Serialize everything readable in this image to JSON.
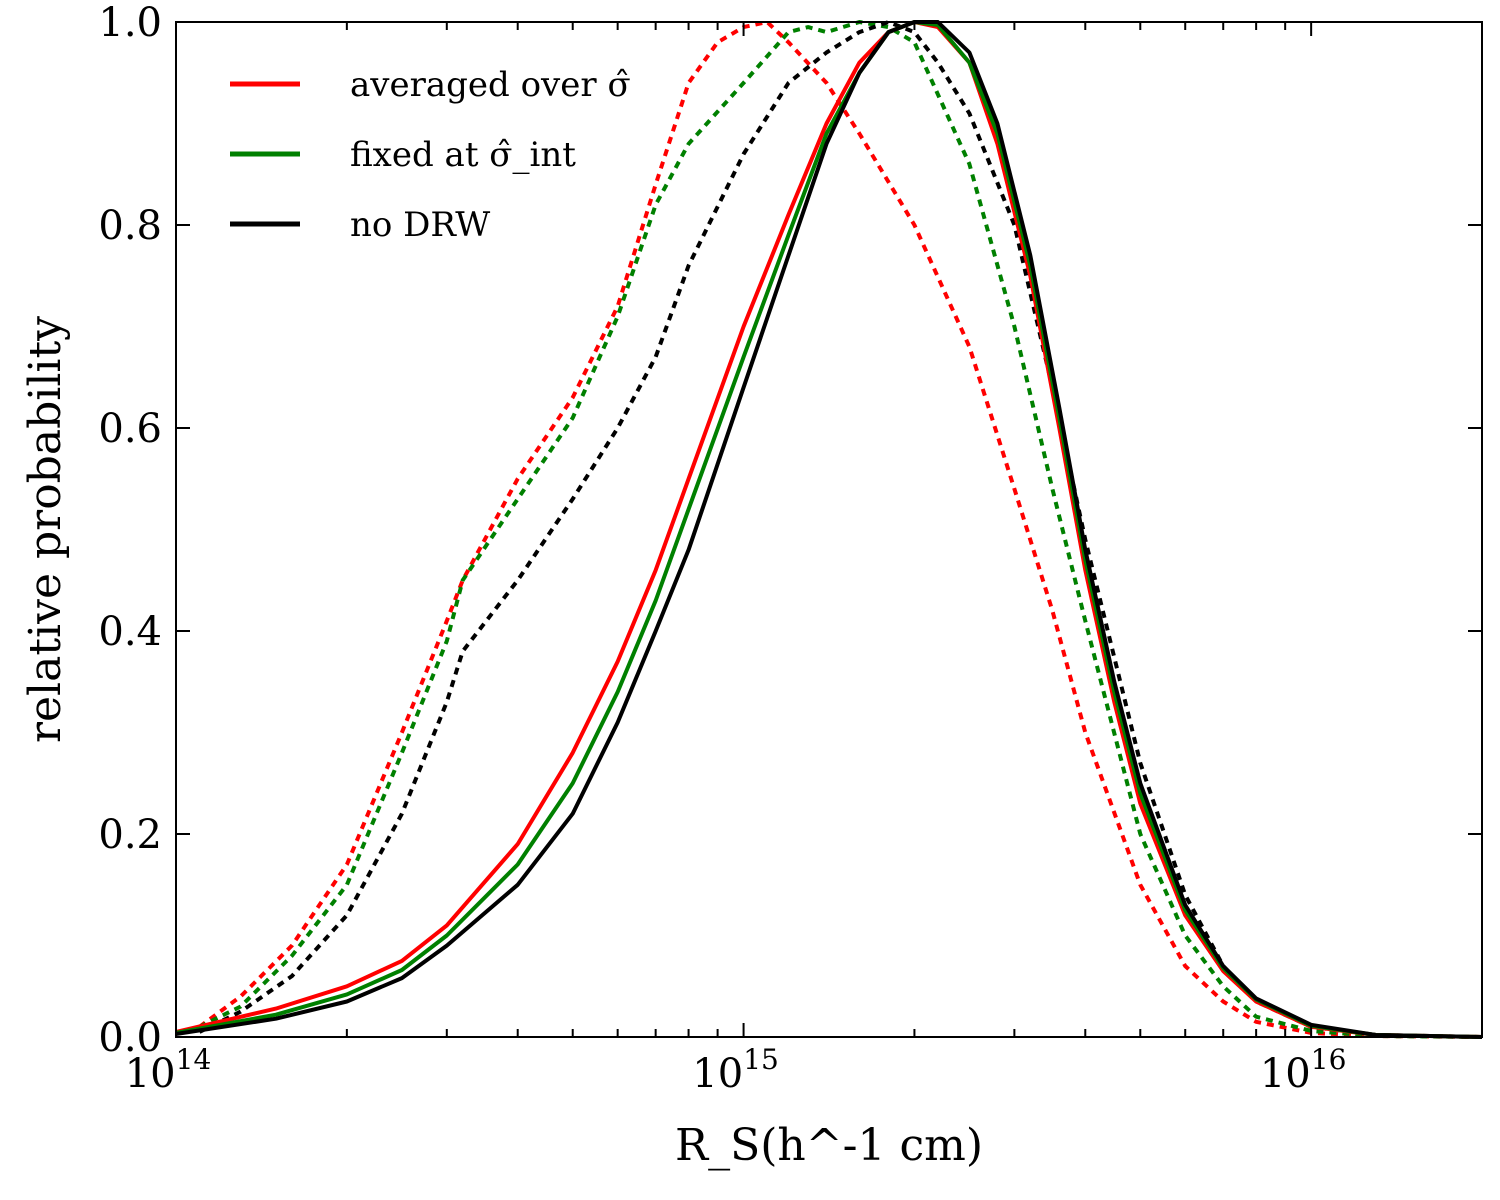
{
  "chart_data": {
    "type": "line",
    "title": "",
    "xlabel": "R_S(h^-1 cm)",
    "ylabel": "relative probability",
    "xscale": "log",
    "xlim": [
      100000000000000.0,
      2e+16
    ],
    "ylim": [
      0.0,
      1.0
    ],
    "legend_position": "top-left",
    "x_ticks": [
      {
        "value": 100000000000000.0,
        "base": "10",
        "exp": "14"
      },
      {
        "value": 1000000000000000.0,
        "base": "10",
        "exp": "15"
      },
      {
        "value": 1e+16,
        "base": "10",
        "exp": "16"
      }
    ],
    "y_ticks": [
      {
        "value": 0.0,
        "label": "0.0"
      },
      {
        "value": 0.2,
        "label": "0.2"
      },
      {
        "value": 0.4,
        "label": "0.4"
      },
      {
        "value": 0.6,
        "label": "0.6"
      },
      {
        "value": 0.8,
        "label": "0.8"
      },
      {
        "value": 1.0,
        "label": "1.0"
      }
    ],
    "legend": [
      {
        "label": "averaged over σ̂",
        "color": "#ff0000"
      },
      {
        "label": "fixed at σ̂_int",
        "color": "#008000"
      },
      {
        "label": "no DRW",
        "color": "#000000"
      }
    ],
    "series": [
      {
        "name": "averaged over σ̂ (solid)",
        "color": "#ff0000",
        "style": "solid",
        "x": [
          100000000000000.0,
          150000000000000.0,
          200000000000000.0,
          250000000000000.0,
          300000000000000.0,
          400000000000000.0,
          500000000000000.0,
          600000000000000.0,
          700000000000000.0,
          800000000000000.0,
          1000000000000000.0,
          1200000000000000.0,
          1400000000000000.0,
          1600000000000000.0,
          1800000000000000.0,
          2000000000000000.0,
          2200000000000000.0,
          2500000000000000.0,
          2800000000000000.0,
          3200000000000000.0,
          3600000000000000.0,
          4000000000000000.0,
          4500000000000000.0,
          5000000000000000.0,
          6000000000000000.0,
          7000000000000000.0,
          8000000000000000.0,
          1e+16,
          1.3e+16,
          2e+16
        ],
        "y": [
          0.005,
          0.028,
          0.05,
          0.075,
          0.11,
          0.19,
          0.28,
          0.37,
          0.46,
          0.55,
          0.7,
          0.81,
          0.9,
          0.96,
          0.99,
          1.0,
          0.995,
          0.96,
          0.88,
          0.75,
          0.6,
          0.46,
          0.33,
          0.23,
          0.12,
          0.065,
          0.035,
          0.01,
          0.002,
          0.0
        ]
      },
      {
        "name": "fixed at σ̂_int (solid)",
        "color": "#008000",
        "style": "solid",
        "x": [
          100000000000000.0,
          150000000000000.0,
          200000000000000.0,
          250000000000000.0,
          300000000000000.0,
          400000000000000.0,
          500000000000000.0,
          600000000000000.0,
          700000000000000.0,
          800000000000000.0,
          1000000000000000.0,
          1200000000000000.0,
          1400000000000000.0,
          1600000000000000.0,
          1800000000000000.0,
          2000000000000000.0,
          2200000000000000.0,
          2500000000000000.0,
          2800000000000000.0,
          3200000000000000.0,
          3600000000000000.0,
          4000000000000000.0,
          4500000000000000.0,
          5000000000000000.0,
          6000000000000000.0,
          7000000000000000.0,
          8000000000000000.0,
          1e+16,
          1.3e+16,
          2e+16
        ],
        "y": [
          0.004,
          0.022,
          0.042,
          0.066,
          0.1,
          0.17,
          0.25,
          0.34,
          0.43,
          0.52,
          0.67,
          0.79,
          0.89,
          0.95,
          0.99,
          1.0,
          0.997,
          0.96,
          0.89,
          0.76,
          0.61,
          0.47,
          0.34,
          0.24,
          0.125,
          0.068,
          0.037,
          0.011,
          0.002,
          0.0
        ]
      },
      {
        "name": "no DRW (solid)",
        "color": "#000000",
        "style": "solid",
        "x": [
          100000000000000.0,
          150000000000000.0,
          200000000000000.0,
          250000000000000.0,
          300000000000000.0,
          400000000000000.0,
          500000000000000.0,
          600000000000000.0,
          700000000000000.0,
          800000000000000.0,
          1000000000000000.0,
          1200000000000000.0,
          1400000000000000.0,
          1600000000000000.0,
          1800000000000000.0,
          2000000000000000.0,
          2200000000000000.0,
          2500000000000000.0,
          2800000000000000.0,
          3200000000000000.0,
          3600000000000000.0,
          4000000000000000.0,
          4500000000000000.0,
          5000000000000000.0,
          6000000000000000.0,
          7000000000000000.0,
          8000000000000000.0,
          1e+16,
          1.3e+16,
          2e+16
        ],
        "y": [
          0.003,
          0.018,
          0.035,
          0.058,
          0.09,
          0.15,
          0.22,
          0.31,
          0.4,
          0.48,
          0.64,
          0.77,
          0.88,
          0.95,
          0.99,
          1.0,
          1.0,
          0.97,
          0.9,
          0.77,
          0.62,
          0.48,
          0.35,
          0.25,
          0.13,
          0.07,
          0.038,
          0.012,
          0.002,
          0.0
        ]
      },
      {
        "name": "averaged over σ̂ (dotted)",
        "color": "#ff0000",
        "style": "dotted",
        "x": [
          110000000000000.0,
          130000000000000.0,
          160000000000000.0,
          200000000000000.0,
          250000000000000.0,
          300000000000000.0,
          320000000000000.0,
          400000000000000.0,
          500000000000000.0,
          600000000000000.0,
          700000000000000.0,
          800000000000000.0,
          900000000000000.0,
          1000000000000000.0,
          1100000000000000.0,
          1200000000000000.0,
          1400000000000000.0,
          1600000000000000.0,
          2000000000000000.0,
          2500000000000000.0,
          3000000000000000.0,
          3500000000000000.0,
          4000000000000000.0,
          5000000000000000.0,
          6000000000000000.0,
          7000000000000000.0,
          8000000000000000.0,
          1e+16,
          1.3e+16,
          2e+16
        ],
        "y": [
          0.01,
          0.04,
          0.09,
          0.17,
          0.3,
          0.41,
          0.45,
          0.55,
          0.63,
          0.72,
          0.84,
          0.94,
          0.98,
          0.995,
          1.0,
          0.98,
          0.94,
          0.89,
          0.8,
          0.68,
          0.54,
          0.42,
          0.3,
          0.15,
          0.07,
          0.035,
          0.015,
          0.004,
          0.001,
          0.0
        ]
      },
      {
        "name": "fixed at σ̂_int (dotted)",
        "color": "#008000",
        "style": "dotted",
        "x": [
          110000000000000.0,
          130000000000000.0,
          160000000000000.0,
          200000000000000.0,
          250000000000000.0,
          300000000000000.0,
          320000000000000.0,
          400000000000000.0,
          500000000000000.0,
          600000000000000.0,
          700000000000000.0,
          800000000000000.0,
          1000000000000000.0,
          1200000000000000.0,
          1300000000000000.0,
          1400000000000000.0,
          1600000000000000.0,
          1800000000000000.0,
          2000000000000000.0,
          2500000000000000.0,
          3000000000000000.0,
          3500000000000000.0,
          4000000000000000.0,
          5000000000000000.0,
          6000000000000000.0,
          7000000000000000.0,
          8000000000000000.0,
          1e+16,
          1.3e+16,
          2e+16
        ],
        "y": [
          0.01,
          0.03,
          0.08,
          0.15,
          0.28,
          0.39,
          0.45,
          0.53,
          0.61,
          0.71,
          0.82,
          0.88,
          0.94,
          0.99,
          0.995,
          0.99,
          1.0,
          0.995,
          0.98,
          0.86,
          0.7,
          0.54,
          0.41,
          0.2,
          0.1,
          0.05,
          0.02,
          0.006,
          0.001,
          0.0
        ]
      },
      {
        "name": "no DRW (dotted)",
        "color": "#000000",
        "style": "dotted",
        "x": [
          110000000000000.0,
          130000000000000.0,
          160000000000000.0,
          200000000000000.0,
          250000000000000.0,
          300000000000000.0,
          320000000000000.0,
          400000000000000.0,
          500000000000000.0,
          600000000000000.0,
          700000000000000.0,
          800000000000000.0,
          1000000000000000.0,
          1200000000000000.0,
          1400000000000000.0,
          1600000000000000.0,
          1800000000000000.0,
          2000000000000000.0,
          2200000000000000.0,
          2500000000000000.0,
          3000000000000000.0,
          3500000000000000.0,
          4000000000000000.0,
          5000000000000000.0,
          6000000000000000.0,
          7000000000000000.0,
          8000000000000000.0,
          1e+16,
          1.3e+16,
          2e+16
        ],
        "y": [
          0.005,
          0.025,
          0.06,
          0.12,
          0.22,
          0.33,
          0.38,
          0.45,
          0.53,
          0.6,
          0.67,
          0.76,
          0.87,
          0.94,
          0.97,
          0.99,
          1.0,
          0.99,
          0.96,
          0.91,
          0.8,
          0.64,
          0.49,
          0.27,
          0.14,
          0.07,
          0.035,
          0.01,
          0.002,
          0.0
        ]
      }
    ]
  }
}
